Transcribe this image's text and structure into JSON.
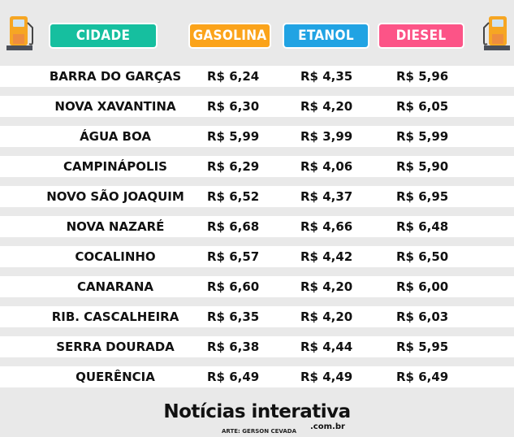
{
  "header": {
    "columns": [
      {
        "label": "CIDADE",
        "color": "#16bf9f"
      },
      {
        "label": "GASOLINA",
        "color": "#fba31a"
      },
      {
        "label": "ETANOL",
        "color": "#21a3e3"
      },
      {
        "label": "DIESEL",
        "color": "#fc5487"
      }
    ],
    "icons": [
      "fuel-pump-icon",
      "fuel-pump-icon"
    ]
  },
  "rows": [
    {
      "city": "BARRA DO GARÇAS",
      "gasolina": "R$ 6,24",
      "etanol": "R$ 4,35",
      "diesel": "R$ 5,96"
    },
    {
      "city": "NOVA XAVANTINA",
      "gasolina": "R$ 6,30",
      "etanol": "R$ 4,20",
      "diesel": "R$ 6,05"
    },
    {
      "city": "ÁGUA BOA",
      "gasolina": "R$ 5,99",
      "etanol": "R$ 3,99",
      "diesel": "R$ 5,99"
    },
    {
      "city": "CAMPINÁPOLIS",
      "gasolina": "R$ 6,29",
      "etanol": "R$ 4,06",
      "diesel": "R$ 5,90"
    },
    {
      "city": "NOVO SÃO JOAQUIM",
      "gasolina": "R$ 6,52",
      "etanol": "R$ 4,37",
      "diesel": "R$ 6,95"
    },
    {
      "city": "NOVA NAZARÉ",
      "gasolina": "R$ 6,68",
      "etanol": "R$ 4,66",
      "diesel": "R$ 6,48"
    },
    {
      "city": "COCALINHO",
      "gasolina": "R$ 6,57",
      "etanol": "R$ 4,42",
      "diesel": "R$ 6,50"
    },
    {
      "city": "CANARANA",
      "gasolina": "R$ 6,60",
      "etanol": "R$ 4,20",
      "diesel": "R$ 6,00"
    },
    {
      "city": "RIB. CASCALHEIRA",
      "gasolina": "R$ 6,35",
      "etanol": "R$ 4,20",
      "diesel": "R$ 6,03"
    },
    {
      "city": "SERRA DOURADA",
      "gasolina": "R$ 6,38",
      "etanol": "R$ 4,44",
      "diesel": "R$ 5,95"
    },
    {
      "city": "QUERÊNCIA",
      "gasolina": "R$ 6,49",
      "etanol": "R$ 4,49",
      "diesel": "R$ 6,49"
    }
  ],
  "footer": {
    "logo": "Notícias interativa",
    "site": ".com.br",
    "credit": "ARTE: GERSON CEVADA"
  }
}
